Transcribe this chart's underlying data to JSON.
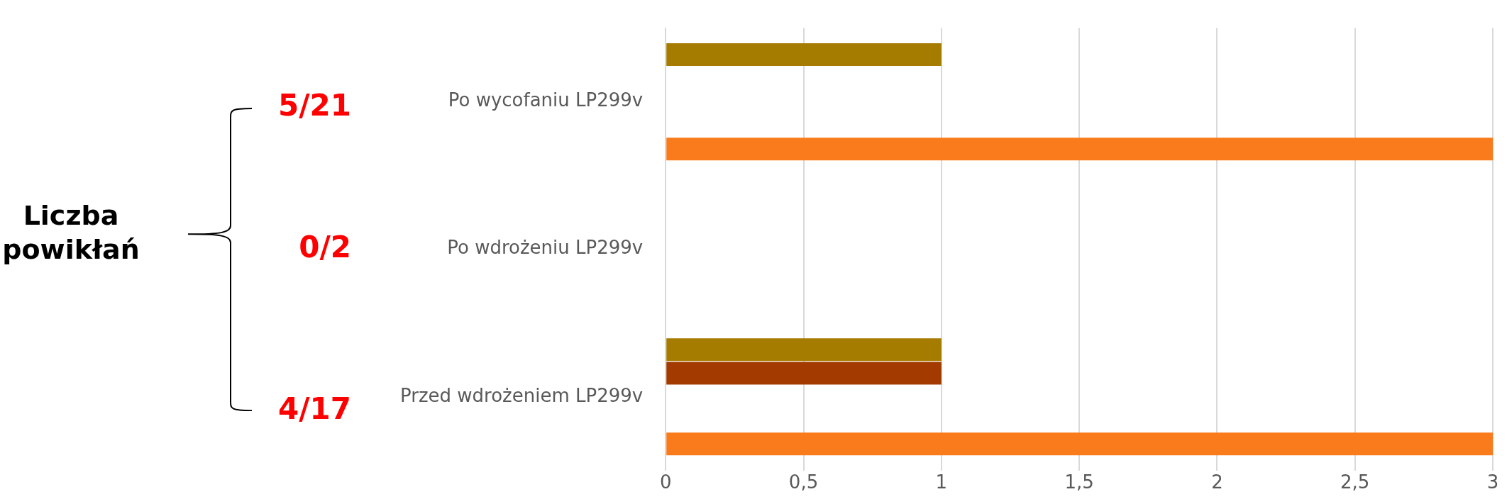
{
  "chart_data": {
    "type": "bar",
    "orientation": "horizontal",
    "categories": [
      "Po wycofaniu LP299v",
      "Po wdrożeniu LP299v",
      "Przed wdrożeniem LP299v"
    ],
    "series": [
      {
        "color": "#a67c00",
        "values": [
          1,
          0,
          1
        ]
      },
      {
        "color": "#a33b00",
        "values": [
          0,
          0,
          1
        ]
      },
      {
        "color": "#5a9a3a",
        "values": [
          0,
          0,
          0
        ]
      },
      {
        "color": "#d4a017",
        "values": [
          0,
          0,
          0
        ]
      },
      {
        "color": "#f97b1c",
        "values": [
          3,
          0,
          3
        ]
      }
    ],
    "xlim": [
      0,
      3
    ],
    "xticks": [
      0,
      {
        "value": 0.5,
        "label": "0,5"
      },
      1,
      {
        "value": 1.5,
        "label": "1,5"
      },
      2,
      {
        "value": 2.5,
        "label": "2,5"
      },
      3
    ],
    "grid": "x",
    "legend": false,
    "annotations": [
      "Liczba powikłań",
      "5/21",
      "0/2",
      "4/17"
    ]
  }
}
